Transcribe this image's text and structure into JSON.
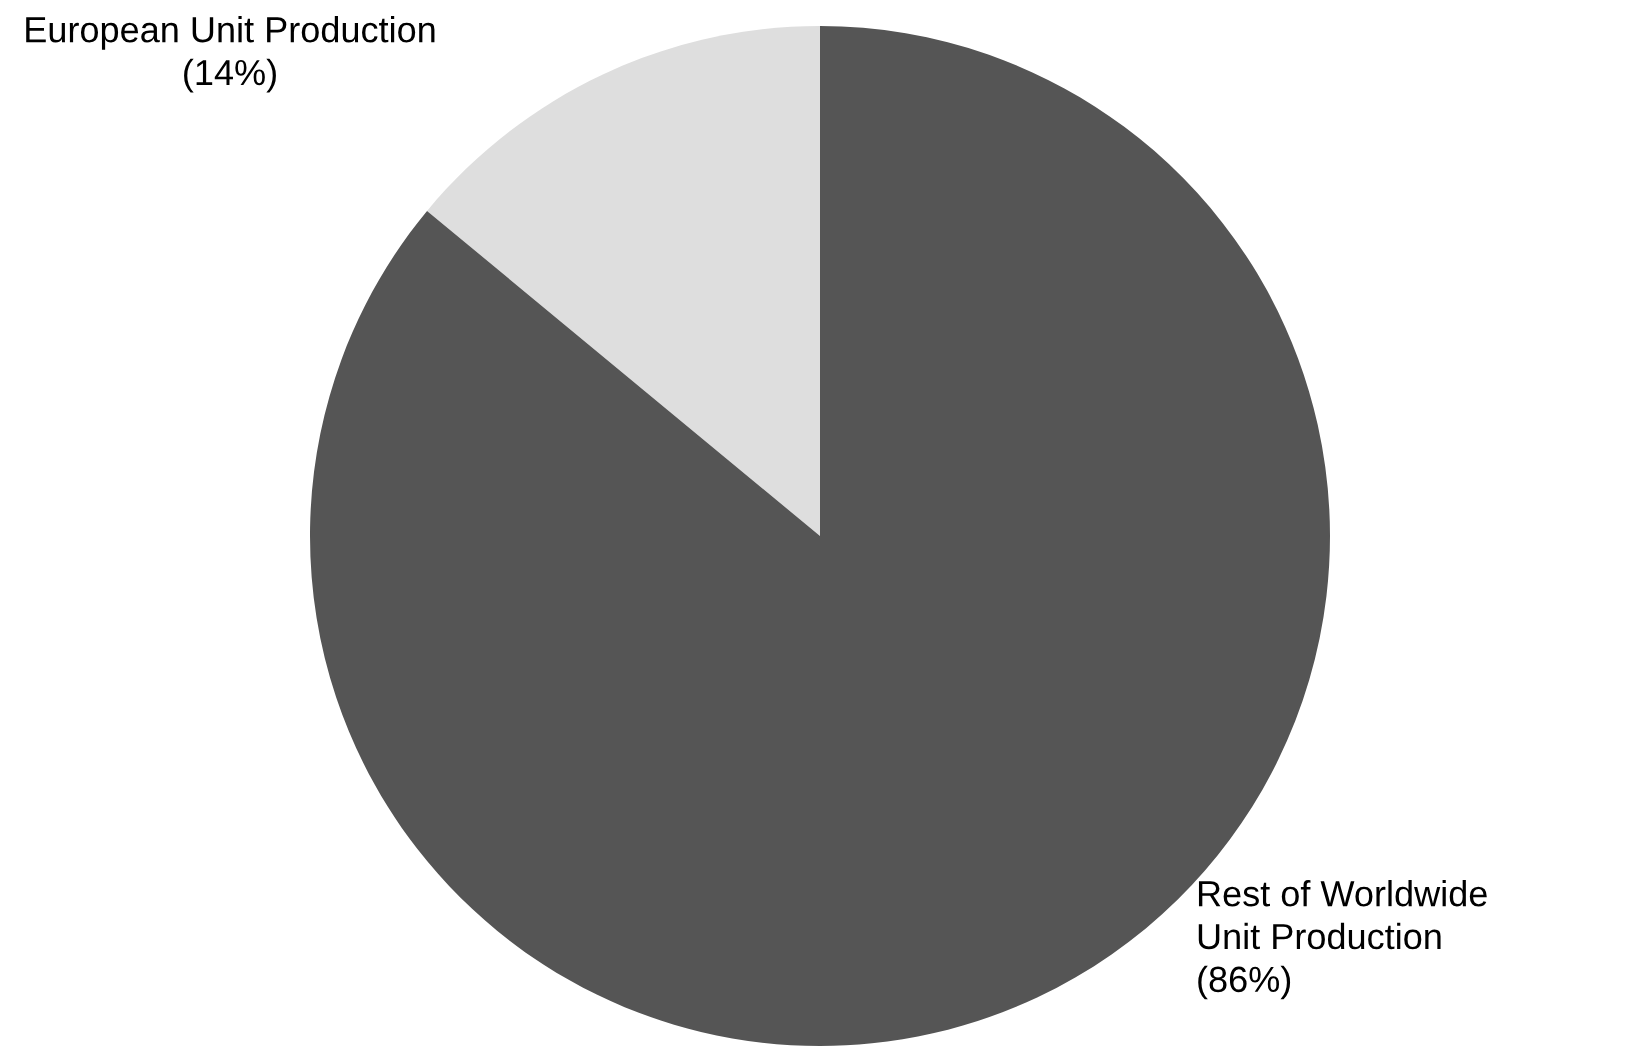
{
  "chart_data": {
    "type": "pie",
    "categories": [
      "European Unit Production",
      "Rest of Worldwide Unit Production"
    ],
    "values": [
      14,
      86
    ],
    "value_labels": [
      "(14%)",
      "(86%)"
    ],
    "colors": [
      "#dedede",
      "#555555"
    ]
  }
}
